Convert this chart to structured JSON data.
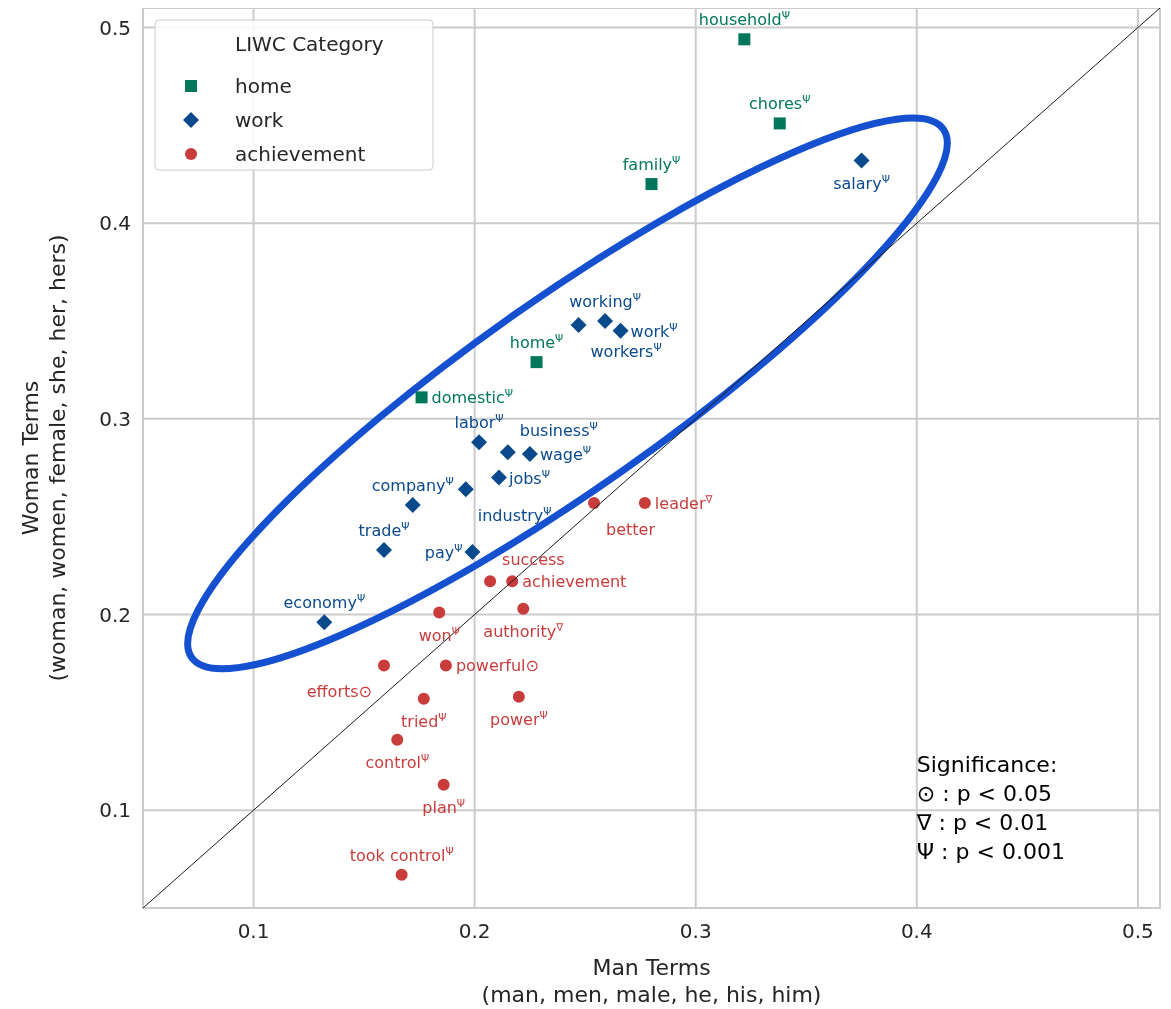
{
  "chart_data": {
    "type": "scatter",
    "xlabel": "Man Terms\n(man, men, male, he, his, him)",
    "ylabel": "Woman Terms\n(woman, women, female, she, her, hers)",
    "legend_title": "LIWC Category",
    "legend": "top left",
    "grid": true,
    "xlim": [
      0.05,
      0.51
    ],
    "ylim": [
      0.05,
      0.51
    ],
    "xticks": [
      0.1,
      0.2,
      0.3,
      0.4,
      0.5
    ],
    "yticks": [
      0.1,
      0.2,
      0.3,
      0.4,
      0.5
    ],
    "series": [
      {
        "name": "home",
        "color": "#00775a",
        "marker": "square",
        "x": [
          0.322,
          0.338,
          0.28,
          0.228,
          0.176
        ],
        "values": [
          0.494,
          0.451,
          0.42,
          0.329,
          0.311
        ]
      },
      {
        "name": "work",
        "color": "#0a4a8c",
        "marker": "diamond",
        "x": [
          0.375,
          0.247,
          0.259,
          0.266,
          0.202,
          0.215,
          0.225,
          0.211,
          0.172,
          0.196,
          0.159,
          0.199,
          0.132
        ],
        "values": [
          0.432,
          0.348,
          0.35,
          0.345,
          0.288,
          0.283,
          0.282,
          0.27,
          0.256,
          0.264,
          0.233,
          0.232,
          0.196
        ]
      },
      {
        "name": "achievement",
        "color": "#c83c3c",
        "marker": "circle",
        "x": [
          0.254,
          0.277,
          0.207,
          0.217,
          0.184,
          0.222,
          0.159,
          0.187,
          0.177,
          0.22,
          0.165,
          0.186,
          0.167
        ],
        "values": [
          0.257,
          0.257,
          0.217,
          0.217,
          0.201,
          0.203,
          0.174,
          0.174,
          0.157,
          0.158,
          0.136,
          0.113,
          0.067
        ]
      },
      {
        "type": "line",
        "color": "#1a1a1a",
        "line_style": "solid",
        "marker": "none",
        "x": [
          0.05,
          0.51
        ],
        "values": [
          0.05,
          0.51
        ]
      }
    ],
    "annotations": [
      {
        "text": "household$^{Ψ}$",
        "x": 0.322,
        "y": 0.494
      },
      {
        "text": "chores$^{Ψ}$",
        "x": 0.338,
        "y": 0.451
      },
      {
        "text": "family$^{Ψ}$",
        "x": 0.28,
        "y": 0.42
      },
      {
        "text": "home$^{Ψ}$",
        "x": 0.228,
        "y": 0.329
      },
      {
        "text": "domestic$^{Ψ}$",
        "x": 0.176,
        "y": 0.311
      },
      {
        "text": "salary$^{Ψ}$",
        "x": 0.375,
        "y": 0.432
      },
      {
        "text": "workers$^{Ψ}$",
        "x": 0.247,
        "y": 0.348
      },
      {
        "text": "working$^{Ψ}$",
        "x": 0.259,
        "y": 0.35
      },
      {
        "text": "work$^{Ψ}$",
        "x": 0.266,
        "y": 0.345
      },
      {
        "text": "labor$^{Ψ}$",
        "x": 0.202,
        "y": 0.288
      },
      {
        "text": "business$^{Ψ}$",
        "x": 0.215,
        "y": 0.283
      },
      {
        "text": "wage$^{Ψ}$",
        "x": 0.225,
        "y": 0.282
      },
      {
        "text": "jobs$^{Ψ}$",
        "x": 0.211,
        "y": 0.27
      },
      {
        "text": "company$^{Ψ}$",
        "x": 0.172,
        "y": 0.256
      },
      {
        "text": "industry$^{Ψ}$",
        "x": 0.196,
        "y": 0.264
      },
      {
        "text": "trade$^{Ψ}$",
        "x": 0.159,
        "y": 0.233
      },
      {
        "text": "pay$^{Ψ}$",
        "x": 0.199,
        "y": 0.232
      },
      {
        "text": "economy$^{Ψ}$",
        "x": 0.132,
        "y": 0.196
      },
      {
        "text": "better",
        "x": 0.254,
        "y": 0.257
      },
      {
        "text": "leader$^{∇}$",
        "x": 0.277,
        "y": 0.257
      },
      {
        "text": "success",
        "x": 0.207,
        "y": 0.217
      },
      {
        "text": "achievement",
        "x": 0.217,
        "y": 0.217
      },
      {
        "text": "won$^{Ψ}$",
        "x": 0.184,
        "y": 0.201
      },
      {
        "text": "authority$^{∇}$",
        "x": 0.222,
        "y": 0.203
      },
      {
        "text": "efforts⊙",
        "x": 0.159,
        "y": 0.174
      },
      {
        "text": "powerful⊙",
        "x": 0.187,
        "y": 0.174
      },
      {
        "text": "tried$^{Ψ}$",
        "x": 0.177,
        "y": 0.157
      },
      {
        "text": "power$^{Ψ}$",
        "x": 0.22,
        "y": 0.158
      },
      {
        "text": "control$^{Ψ}$",
        "x": 0.165,
        "y": 0.136
      },
      {
        "text": "plan$^{Ψ}$",
        "x": 0.186,
        "y": 0.113
      },
      {
        "text": "took control$^{Ψ}$",
        "x": 0.167,
        "y": 0.067
      },
      "Significance:",
      "⊙ : p < 0.05",
      "∇ : p < 0.01",
      "Ψ : p < 0.001"
    ]
  }
}
